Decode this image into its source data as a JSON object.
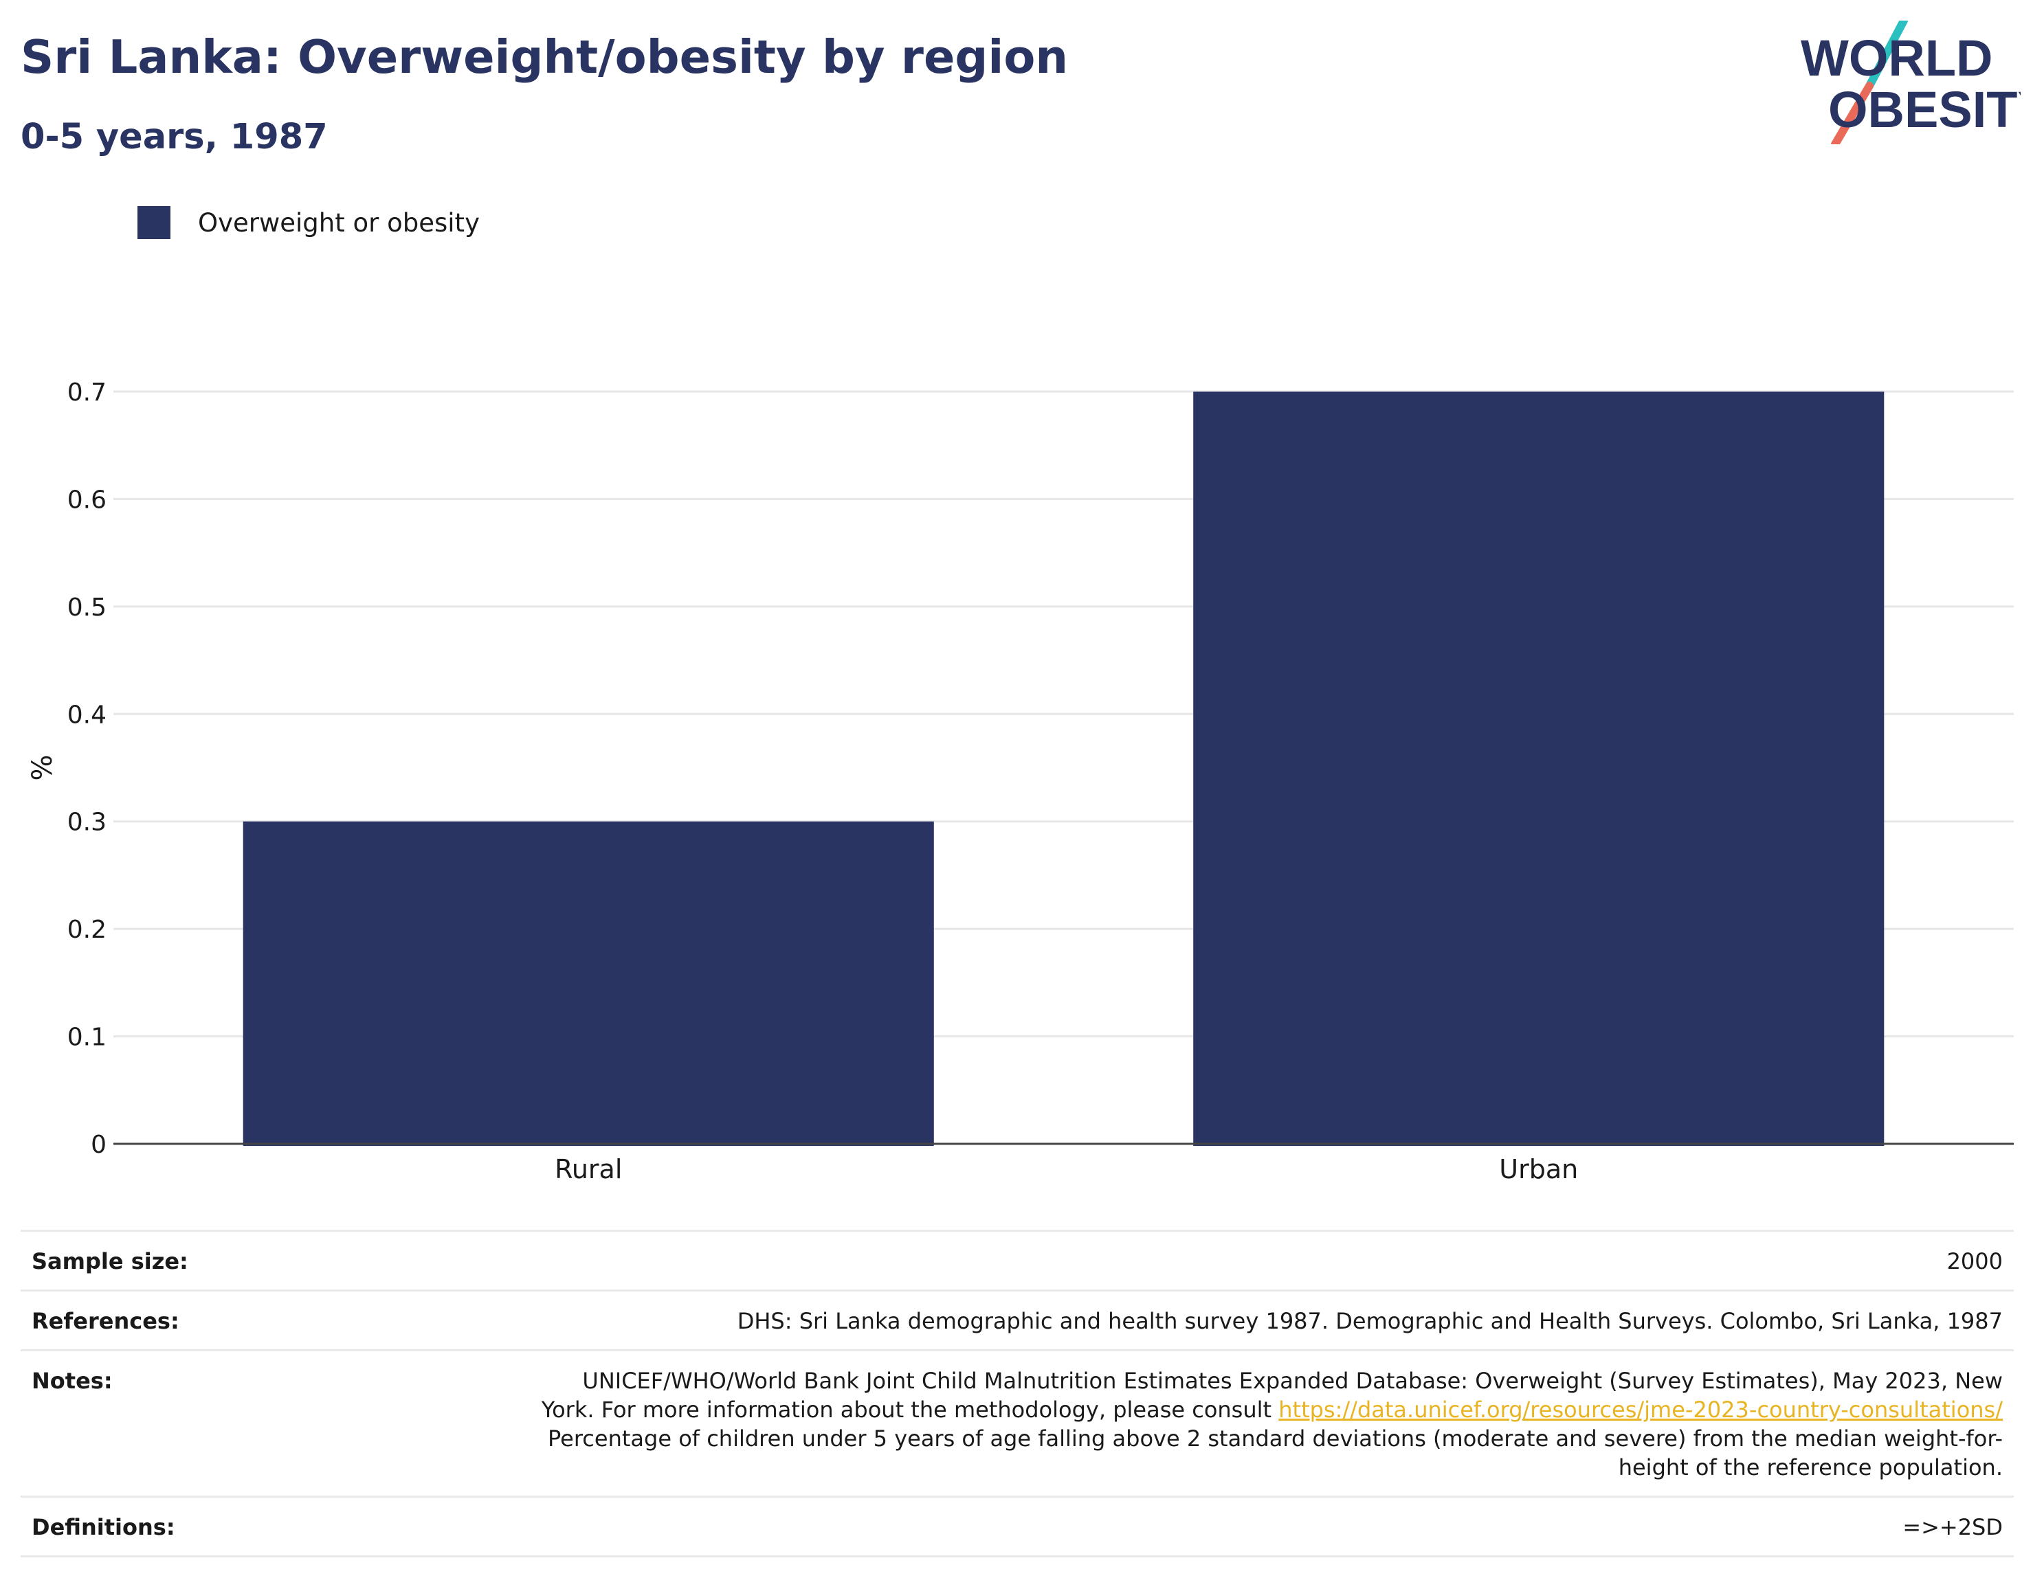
{
  "header": {
    "title": "Sri Lanka: Overweight/obesity by region",
    "subtitle": "0-5 years, 1987"
  },
  "logo": {
    "line1": "WORLD",
    "line2": "OBESITY"
  },
  "legend": {
    "label": "Overweight or obesity",
    "color": "#293462"
  },
  "chart_data": {
    "type": "bar",
    "categories": [
      "Rural",
      "Urban"
    ],
    "series": [
      {
        "name": "Overweight or obesity",
        "values": [
          0.3,
          0.7
        ],
        "color": "#293462"
      }
    ],
    "ylabel": "%",
    "ylim": [
      0,
      0.7
    ],
    "yticks": [
      "0",
      "0.1",
      "0.2",
      "0.3",
      "0.4",
      "0.5",
      "0.6",
      "0.7"
    ],
    "grid": true
  },
  "info": {
    "sample_size_label": "Sample size:",
    "sample_size_value": "2000",
    "references_label": "References:",
    "references_value": "DHS: Sri Lanka demographic and health survey 1987. Demographic and Health Surveys. Colombo, Sri Lanka, 1987",
    "notes_label": "Notes:",
    "notes_line1": "UNICEF/WHO/World Bank Joint Child Malnutrition Estimates Expanded Database: Overweight (Survey Estimates), May 2023, New",
    "notes_line2_text": "York. For more information about the methodology, please consult ",
    "notes_link": "https://data.unicef.org/resources/jme-2023-country-consultations/",
    "notes_line3": "Percentage of children under 5 years of age falling above 2 standard deviations (moderate and severe) from the median weight-for-",
    "notes_line4": "height of the reference population.",
    "definitions_label": "Definitions:",
    "definitions_value": "=>+2SD"
  },
  "colors": {
    "brand_navy": "#293462",
    "logo_teal": "#2bbfc0",
    "logo_coral": "#ea6a5a",
    "link": "#e8b423"
  }
}
